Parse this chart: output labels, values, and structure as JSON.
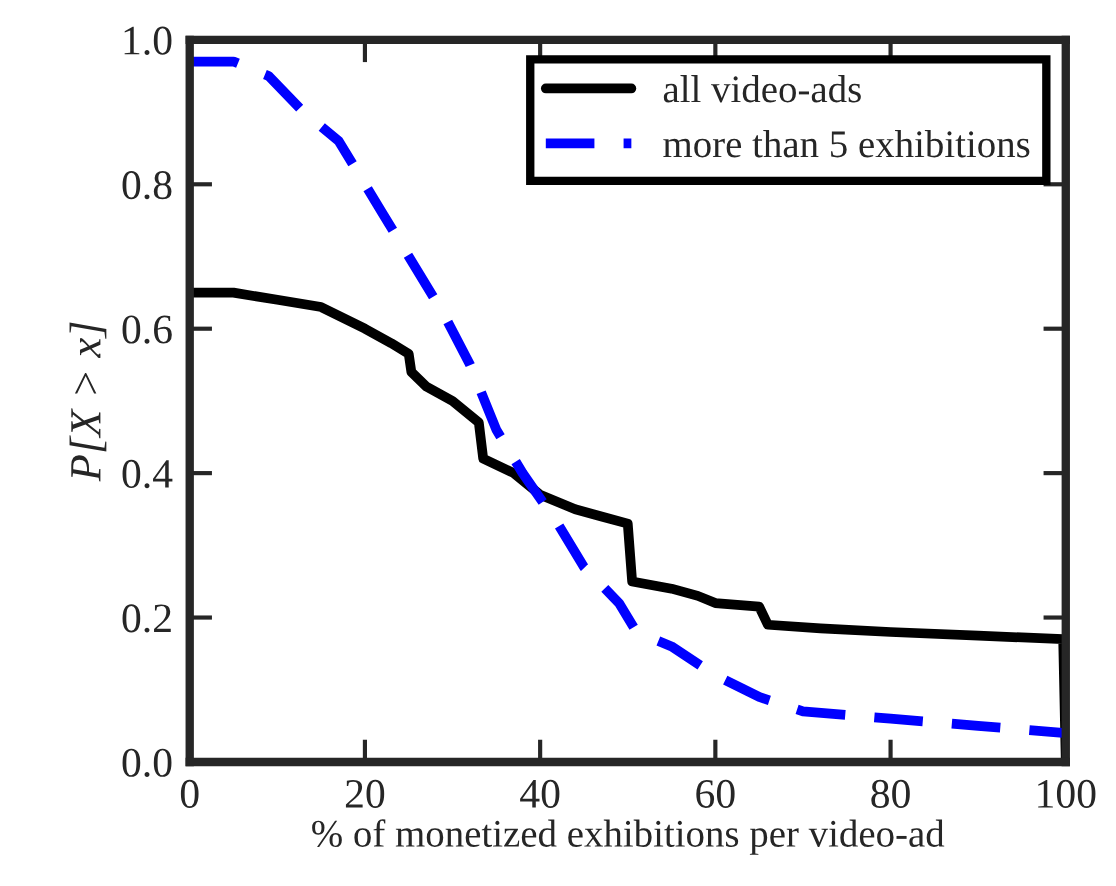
{
  "chart_data": {
    "type": "line",
    "xlabel": "% of monetized exhibitions per video-ad",
    "ylabel": "P[X > x]",
    "xlim": [
      0,
      100
    ],
    "ylim": [
      0,
      1.0
    ],
    "xticks": [
      0,
      20,
      40,
      60,
      80,
      100
    ],
    "yticks": [
      {
        "value": 0,
        "label": "0.0"
      },
      0.2,
      0.4,
      0.6,
      0.8,
      {
        "value": 1.0,
        "label": "1.0"
      }
    ],
    "grid": false,
    "legend": "top right",
    "marker": "none",
    "series": [
      {
        "name": "all video-ads",
        "color": "#000000",
        "line_style": "solid",
        "x": [
          0,
          5,
          10,
          15,
          20,
          23,
          25,
          25.3,
          27,
          30,
          33,
          33.5,
          37,
          40,
          44,
          47,
          50,
          50.5,
          55,
          58,
          60,
          65,
          66,
          72,
          80,
          90,
          99.7,
          100
        ],
        "values": [
          0.65,
          0.65,
          0.64,
          0.63,
          0.6,
          0.58,
          0.565,
          0.54,
          0.52,
          0.5,
          0.47,
          0.42,
          0.4,
          0.37,
          0.35,
          0.34,
          0.33,
          0.25,
          0.24,
          0.23,
          0.22,
          0.215,
          0.19,
          0.185,
          0.18,
          0.175,
          0.17,
          0.0
        ]
      },
      {
        "name": "more than 5 exhibitions",
        "color": "#0000ff",
        "line_style": "dashed",
        "x": [
          0,
          5,
          9,
          13,
          17,
          20,
          22,
          25,
          29,
          32,
          35,
          38,
          42,
          45,
          49,
          51,
          55,
          60,
          65,
          70,
          80,
          90,
          100
        ],
        "values": [
          0.97,
          0.97,
          0.95,
          0.9,
          0.86,
          0.8,
          0.76,
          0.7,
          0.62,
          0.55,
          0.46,
          0.4,
          0.33,
          0.27,
          0.22,
          0.18,
          0.16,
          0.12,
          0.09,
          0.07,
          0.06,
          0.05,
          0.04
        ]
      }
    ]
  }
}
